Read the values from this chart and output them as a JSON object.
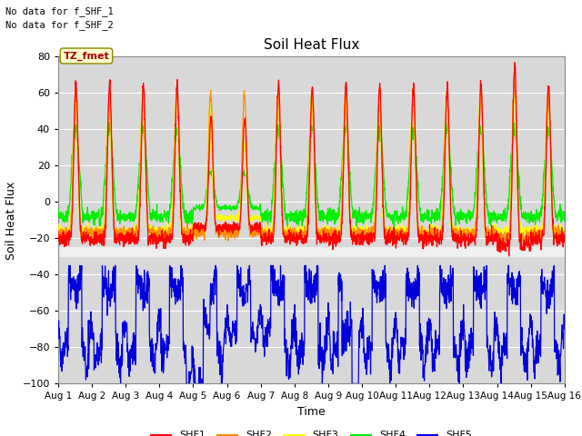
{
  "title": "Soil Heat Flux",
  "ylabel": "Soil Heat Flux",
  "xlabel": "Time",
  "note1": "No data for f_SHF_1",
  "note2": "No data for f_SHF_2",
  "tz_label": "TZ_fmet",
  "ylim": [
    -100,
    80
  ],
  "yticks": [
    -100,
    -80,
    -60,
    -40,
    -20,
    0,
    20,
    40,
    60,
    80
  ],
  "xtick_labels": [
    "Aug 1",
    "Aug 2",
    "Aug 3",
    "Aug 4",
    "Aug 5",
    "Aug 6",
    "Aug 7",
    "Aug 8",
    "Aug 9",
    "Aug 10",
    "Aug 11",
    "Aug 12",
    "Aug 13",
    "Aug 14",
    "Aug 15",
    "Aug 16"
  ],
  "colors": {
    "SHF1": "#FF0000",
    "SHF2": "#FF8C00",
    "SHF3": "#FFFF00",
    "SHF4": "#00EE00",
    "SHF5": "#0000DD"
  },
  "bg_upper": "#D8D8D8",
  "bg_lower": "#D8D8D8",
  "bg_mid": "#F0F0F0",
  "n_days": 15,
  "pts_per_day": 144,
  "separator_low": -30,
  "separator_high": -25
}
